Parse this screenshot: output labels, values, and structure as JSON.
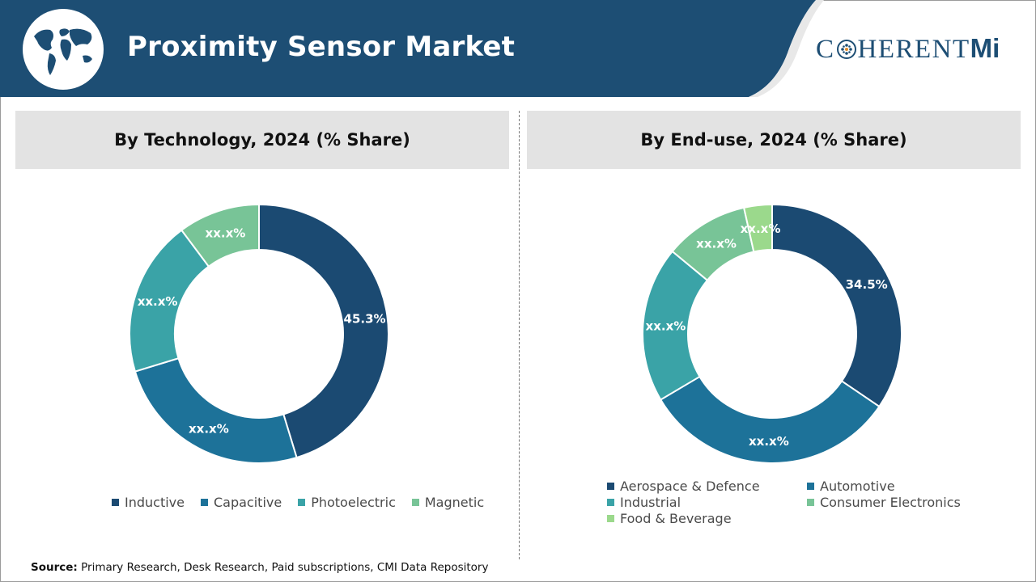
{
  "header": {
    "title": "Proximity Sensor Market",
    "logo_left": "C",
    "logo_mid": "HERENT",
    "logo_right": "Mi",
    "colors": {
      "banner": "#1d4e74",
      "logo": "#1d4e74"
    }
  },
  "source": {
    "label": "Source:",
    "text": "Primary Research, Desk Research, Paid subscriptions, CMI Data Repository"
  },
  "chart_data": [
    {
      "type": "pie",
      "style": "donut",
      "title": "By Technology, 2024 (% Share)",
      "categories": [
        "Inductive",
        "Capacitive",
        "Photoelectric",
        "Magnetic"
      ],
      "values": [
        45.3,
        25.0,
        19.5,
        10.2
      ],
      "labels": [
        "45.3%",
        "xx.x%",
        "xx.x%",
        "xx.x%"
      ],
      "colors": [
        "#1b4a72",
        "#1d7299",
        "#3aa3a7",
        "#78c497"
      ],
      "legend": "bottom"
    },
    {
      "type": "pie",
      "style": "donut",
      "title": "By End-use, 2024 (% Share)",
      "categories": [
        "Aerospace & Defence",
        "Automotive",
        "Industrial",
        "Consumer Electronics",
        "Food & Beverage"
      ],
      "values": [
        34.5,
        32.0,
        19.5,
        10.5,
        3.5
      ],
      "labels": [
        "34.5%",
        "xx.x%",
        "xx.x%",
        "xx.x%",
        "xx.x%"
      ],
      "colors": [
        "#1b4a72",
        "#1d7299",
        "#3aa3a7",
        "#78c497",
        "#9bd98c"
      ],
      "legend": "bottom"
    }
  ]
}
